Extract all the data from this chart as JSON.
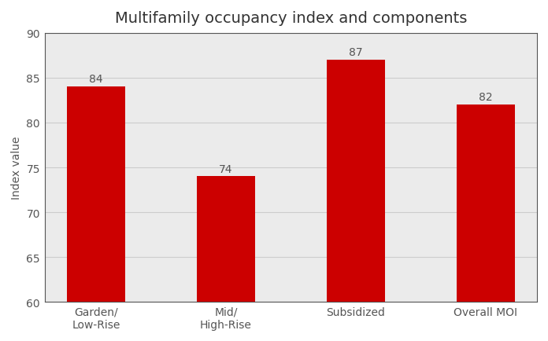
{
  "title": "Multifamily occupancy index and components",
  "categories": [
    "Garden/\nLow-Rise",
    "Mid/\nHigh-Rise",
    "Subsidized",
    "Overall MOI"
  ],
  "values": [
    84,
    74,
    87,
    82
  ],
  "bar_color": "#CC0000",
  "ylabel": "Index value",
  "ylim": [
    60,
    90
  ],
  "yticks": [
    60,
    65,
    70,
    75,
    80,
    85,
    90
  ],
  "background_color": "#EBEBEB",
  "fig_background_color": "#FFFFFF",
  "title_fontsize": 14,
  "title_fontweight": "normal",
  "label_fontsize": 10,
  "tick_fontsize": 10,
  "annotation_fontsize": 10,
  "bar_width": 0.45,
  "grid_color": "#CCCCCC",
  "grid_linewidth": 0.8,
  "spine_color": "#555555",
  "annotation_color": "#555555"
}
